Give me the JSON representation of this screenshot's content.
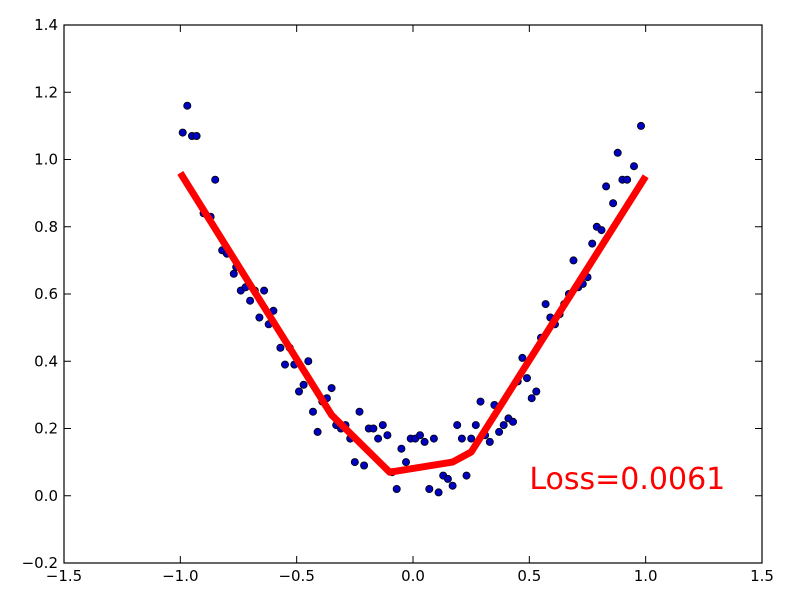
{
  "chart_data": {
    "type": "scatter",
    "title": "",
    "xlabel": "",
    "ylabel": "",
    "xlim": [
      -1.5,
      1.5
    ],
    "ylim": [
      -0.2,
      1.4
    ],
    "xticks": [
      -1.5,
      -1.0,
      -0.5,
      0.0,
      0.5,
      1.0,
      1.5
    ],
    "yticks": [
      -0.2,
      0.0,
      0.2,
      0.4,
      0.6,
      0.8,
      1.0,
      1.2,
      1.4
    ],
    "xtick_labels": [
      "−1.5",
      "−1.0",
      "−0.5",
      "0.0",
      "0.5",
      "1.0",
      "1.5"
    ],
    "ytick_labels": [
      "−0.2",
      "0.0",
      "0.2",
      "0.4",
      "0.6",
      "0.8",
      "1.0",
      "1.2",
      "1.4"
    ],
    "grid": false,
    "series": [
      {
        "kind": "scatter",
        "color": "#0000bf",
        "points": [
          [
            -0.99,
            1.08
          ],
          [
            -0.97,
            1.16
          ],
          [
            -0.95,
            1.07
          ],
          [
            -0.93,
            1.07
          ],
          [
            -0.9,
            0.84
          ],
          [
            -0.87,
            0.83
          ],
          [
            -0.85,
            0.94
          ],
          [
            -0.82,
            0.73
          ],
          [
            -0.8,
            0.72
          ],
          [
            -0.77,
            0.66
          ],
          [
            -0.76,
            0.68
          ],
          [
            -0.74,
            0.61
          ],
          [
            -0.72,
            0.62
          ],
          [
            -0.7,
            0.58
          ],
          [
            -0.68,
            0.61
          ],
          [
            -0.66,
            0.53
          ],
          [
            -0.64,
            0.61
          ],
          [
            -0.62,
            0.51
          ],
          [
            -0.6,
            0.55
          ],
          [
            -0.57,
            0.44
          ],
          [
            -0.55,
            0.39
          ],
          [
            -0.53,
            0.44
          ],
          [
            -0.51,
            0.39
          ],
          [
            -0.49,
            0.31
          ],
          [
            -0.47,
            0.33
          ],
          [
            -0.45,
            0.4
          ],
          [
            -0.43,
            0.25
          ],
          [
            -0.41,
            0.19
          ],
          [
            -0.39,
            0.28
          ],
          [
            -0.37,
            0.29
          ],
          [
            -0.35,
            0.32
          ],
          [
            -0.33,
            0.21
          ],
          [
            -0.31,
            0.2
          ],
          [
            -0.29,
            0.21
          ],
          [
            -0.27,
            0.17
          ],
          [
            -0.25,
            0.1
          ],
          [
            -0.23,
            0.25
          ],
          [
            -0.21,
            0.09
          ],
          [
            -0.19,
            0.2
          ],
          [
            -0.17,
            0.2
          ],
          [
            -0.15,
            0.17
          ],
          [
            -0.13,
            0.21
          ],
          [
            -0.11,
            0.18
          ],
          [
            -0.09,
            0.07
          ],
          [
            -0.07,
            0.02
          ],
          [
            -0.05,
            0.14
          ],
          [
            -0.03,
            0.1
          ],
          [
            -0.01,
            0.17
          ],
          [
            0.01,
            0.17
          ],
          [
            0.03,
            0.18
          ],
          [
            0.05,
            0.16
          ],
          [
            0.07,
            0.02
          ],
          [
            0.09,
            0.17
          ],
          [
            0.11,
            0.01
          ],
          [
            0.13,
            0.06
          ],
          [
            0.15,
            0.05
          ],
          [
            0.17,
            0.03
          ],
          [
            0.19,
            0.21
          ],
          [
            0.21,
            0.17
          ],
          [
            0.23,
            0.06
          ],
          [
            0.25,
            0.17
          ],
          [
            0.27,
            0.21
          ],
          [
            0.29,
            0.28
          ],
          [
            0.31,
            0.18
          ],
          [
            0.33,
            0.16
          ],
          [
            0.35,
            0.27
          ],
          [
            0.37,
            0.19
          ],
          [
            0.39,
            0.21
          ],
          [
            0.41,
            0.23
          ],
          [
            0.43,
            0.22
          ],
          [
            0.45,
            0.34
          ],
          [
            0.47,
            0.41
          ],
          [
            0.49,
            0.35
          ],
          [
            0.51,
            0.29
          ],
          [
            0.53,
            0.31
          ],
          [
            0.55,
            0.47
          ],
          [
            0.57,
            0.57
          ],
          [
            0.59,
            0.53
          ],
          [
            0.61,
            0.51
          ],
          [
            0.63,
            0.54
          ],
          [
            0.65,
            0.57
          ],
          [
            0.67,
            0.6
          ],
          [
            0.69,
            0.7
          ],
          [
            0.71,
            0.62
          ],
          [
            0.73,
            0.63
          ],
          [
            0.75,
            0.65
          ],
          [
            0.77,
            0.75
          ],
          [
            0.79,
            0.8
          ],
          [
            0.81,
            0.79
          ],
          [
            0.83,
            0.92
          ],
          [
            0.86,
            0.87
          ],
          [
            0.88,
            1.02
          ],
          [
            0.9,
            0.94
          ],
          [
            0.92,
            0.94
          ],
          [
            0.95,
            0.98
          ],
          [
            0.98,
            1.1
          ]
        ]
      },
      {
        "kind": "line",
        "color": "#ff0000",
        "points": [
          [
            -1.0,
            0.96
          ],
          [
            -0.35,
            0.24
          ],
          [
            -0.1,
            0.07
          ],
          [
            0.17,
            0.1
          ],
          [
            0.25,
            0.13
          ],
          [
            1.0,
            0.95
          ]
        ]
      }
    ],
    "annotations": [
      {
        "text": "Loss=0.0061",
        "x": 0.5,
        "y": 0.02,
        "color": "#ff0000"
      }
    ]
  }
}
